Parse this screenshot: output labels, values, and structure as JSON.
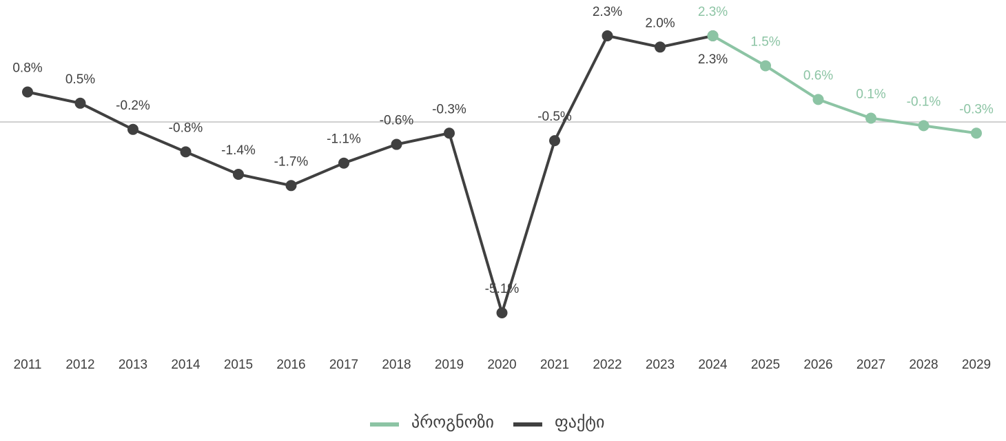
{
  "chart_data": {
    "type": "line",
    "categories": [
      "2011",
      "2012",
      "2013",
      "2014",
      "2015",
      "2016",
      "2017",
      "2018",
      "2019",
      "2020",
      "2021",
      "2022",
      "2023",
      "2024",
      "2025",
      "2026",
      "2027",
      "2028",
      "2029"
    ],
    "series": [
      {
        "name": "პროგნოზი",
        "color": "#8cc4a4",
        "values": [
          null,
          null,
          null,
          null,
          null,
          null,
          null,
          null,
          null,
          null,
          null,
          null,
          null,
          2.3,
          1.5,
          0.6,
          0.1,
          -0.1,
          -0.3
        ],
        "value_labels": [
          null,
          null,
          null,
          null,
          null,
          null,
          null,
          null,
          null,
          null,
          null,
          null,
          null,
          "2.3%",
          "1.5%",
          "0.6%",
          "0.1%",
          "-0.1%",
          "-0.3%"
        ]
      },
      {
        "name": "ფაქტი",
        "color": "#404040",
        "values": [
          0.8,
          0.5,
          -0.2,
          -0.8,
          -1.4,
          -1.7,
          -1.1,
          -0.6,
          -0.3,
          -5.1,
          -0.5,
          2.3,
          2.0,
          2.3,
          null,
          null,
          null,
          null,
          null
        ],
        "value_labels": [
          "0.8%",
          "0.5%",
          "-0.2%",
          "-0.8%",
          "-1.4%",
          "-1.7%",
          "-1.1%",
          "-0.6%",
          "-0.3%",
          "-5.1%",
          "-0.5%",
          "2.3%",
          "2.0%",
          "2.3%",
          null,
          null,
          null,
          null,
          null
        ]
      }
    ],
    "legend": "bottom"
  }
}
